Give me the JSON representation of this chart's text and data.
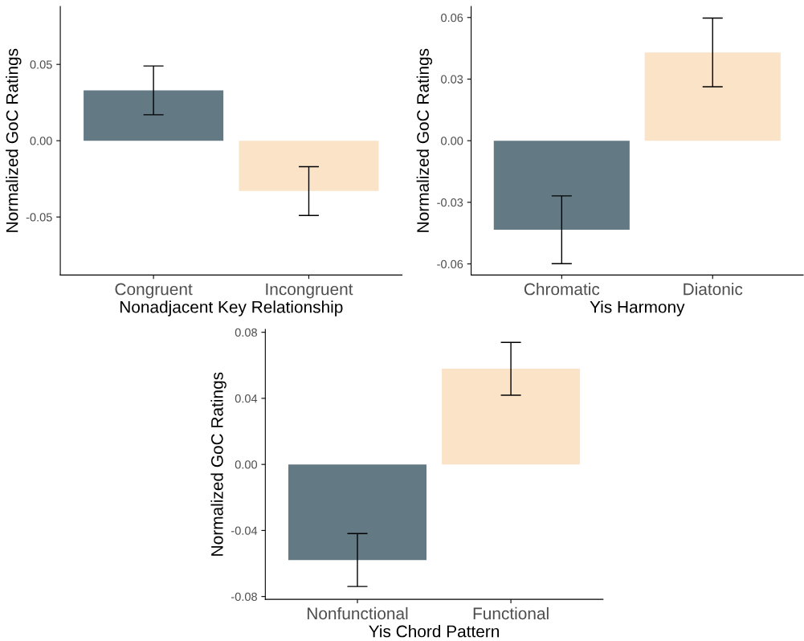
{
  "chart_data": [
    {
      "type": "bar",
      "xlabel": "Nonadjacent Key Relationship",
      "ylabel": "Normalized GoC Ratings",
      "categories": [
        "Congruent",
        "Incongruent"
      ],
      "values": [
        0.033,
        -0.033
      ],
      "colors": [
        "#637a85",
        "#fae3c6"
      ],
      "errors": [
        0.016,
        0.016
      ],
      "ylim": [
        -0.088,
        0.088
      ],
      "yticks": [
        {
          "value": -0.05,
          "label": "-0.05"
        },
        {
          "value": 0,
          "label": "0.00"
        },
        {
          "value": 0.05,
          "label": "0.05"
        }
      ],
      "grid": false
    },
    {
      "type": "bar",
      "xlabel": "Yis Harmony",
      "ylabel": "Normalized GoC Ratings",
      "categories": [
        "Chromatic",
        "Diatonic"
      ],
      "values": [
        -0.0434,
        0.043
      ],
      "colors": [
        "#637a85",
        "#fae3c6"
      ],
      "errors": [
        0.0165,
        0.0167
      ],
      "ylim": [
        -0.0654,
        0.0654
      ],
      "yticks": [
        {
          "value": -0.06,
          "label": "-0.06"
        },
        {
          "value": -0.03,
          "label": "-0.03"
        },
        {
          "value": 0,
          "label": "0.00"
        },
        {
          "value": 0.03,
          "label": "0.03"
        },
        {
          "value": 0.06,
          "label": "0.06"
        }
      ],
      "grid": false
    },
    {
      "type": "bar",
      "xlabel": "Yis Chord Pattern",
      "ylabel": "Normalized GoC Ratings",
      "categories": [
        "Nonfunctional",
        "Functional"
      ],
      "values": [
        -0.0579,
        0.0579
      ],
      "colors": [
        "#637a85",
        "#fae3c6"
      ],
      "errors": [
        0.016,
        0.016
      ],
      "ylim": [
        -0.0817,
        0.0817
      ],
      "yticks": [
        {
          "value": -0.08,
          "label": "-0.08"
        },
        {
          "value": -0.04,
          "label": "-0.04"
        },
        {
          "value": 0,
          "label": "0.00"
        },
        {
          "value": 0.04,
          "label": "0.04"
        },
        {
          "value": 0.08,
          "label": "0.08"
        }
      ],
      "grid": false
    }
  ]
}
